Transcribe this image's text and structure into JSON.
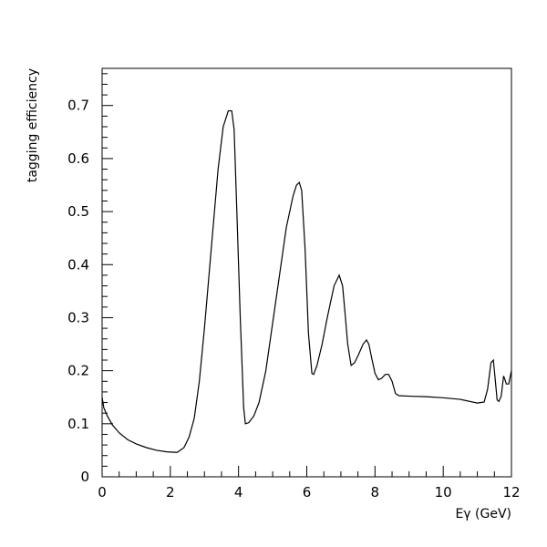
{
  "chart_data": {
    "type": "line",
    "title": "",
    "xlabel": "Eγ (GeV)",
    "ylabel": "tagging efficiency",
    "xlim": [
      0,
      12
    ],
    "ylim": [
      0,
      0.77
    ],
    "grid": false,
    "x_ticks": [
      0,
      2,
      4,
      6,
      8,
      10,
      12
    ],
    "x_tick_labels": [
      "0",
      "2",
      "4",
      "6",
      "8",
      "10",
      "12"
    ],
    "y_ticks": [
      0,
      0.1,
      0.2,
      0.3,
      0.4,
      0.5,
      0.6,
      0.7
    ],
    "y_tick_labels": [
      "0",
      "0.1",
      "0.2",
      "0.3",
      "0.4",
      "0.5",
      "0.6",
      "0.7"
    ],
    "series": [
      {
        "color": "#000000",
        "x": [
          0,
          0.05,
          0.15,
          0.3,
          0.5,
          0.75,
          1.0,
          1.3,
          1.6,
          1.9,
          2.2,
          2.4,
          2.55,
          2.7,
          2.85,
          3.0,
          3.2,
          3.4,
          3.55,
          3.7,
          3.8,
          3.87,
          3.95,
          4.05,
          4.15,
          4.2,
          4.3,
          4.45,
          4.6,
          4.8,
          5.0,
          5.2,
          5.4,
          5.6,
          5.7,
          5.78,
          5.85,
          5.95,
          6.05,
          6.15,
          6.2,
          6.3,
          6.45,
          6.6,
          6.8,
          6.95,
          7.05,
          7.12,
          7.2,
          7.3,
          7.4,
          7.5,
          7.65,
          7.75,
          7.82,
          7.9,
          8.0,
          8.1,
          8.2,
          8.3,
          8.4,
          8.5,
          8.6,
          8.7,
          9.0,
          9.5,
          10.0,
          10.5,
          11.0,
          11.2,
          11.3,
          11.4,
          11.47,
          11.53,
          11.58,
          11.63,
          11.7,
          11.77,
          11.8,
          11.85,
          11.92,
          12.0
        ],
        "y": [
          0.15,
          0.13,
          0.115,
          0.098,
          0.083,
          0.07,
          0.062,
          0.055,
          0.05,
          0.047,
          0.046,
          0.055,
          0.075,
          0.11,
          0.18,
          0.28,
          0.43,
          0.58,
          0.66,
          0.69,
          0.69,
          0.655,
          0.5,
          0.3,
          0.13,
          0.1,
          0.102,
          0.115,
          0.14,
          0.2,
          0.29,
          0.38,
          0.47,
          0.53,
          0.55,
          0.555,
          0.54,
          0.43,
          0.27,
          0.195,
          0.193,
          0.21,
          0.25,
          0.3,
          0.36,
          0.38,
          0.36,
          0.31,
          0.25,
          0.21,
          0.215,
          0.228,
          0.25,
          0.258,
          0.25,
          0.225,
          0.195,
          0.183,
          0.186,
          0.193,
          0.193,
          0.18,
          0.157,
          0.153,
          0.152,
          0.151,
          0.149,
          0.146,
          0.139,
          0.141,
          0.165,
          0.215,
          0.22,
          0.18,
          0.145,
          0.142,
          0.152,
          0.19,
          0.185,
          0.175,
          0.175,
          0.2
        ]
      }
    ]
  }
}
